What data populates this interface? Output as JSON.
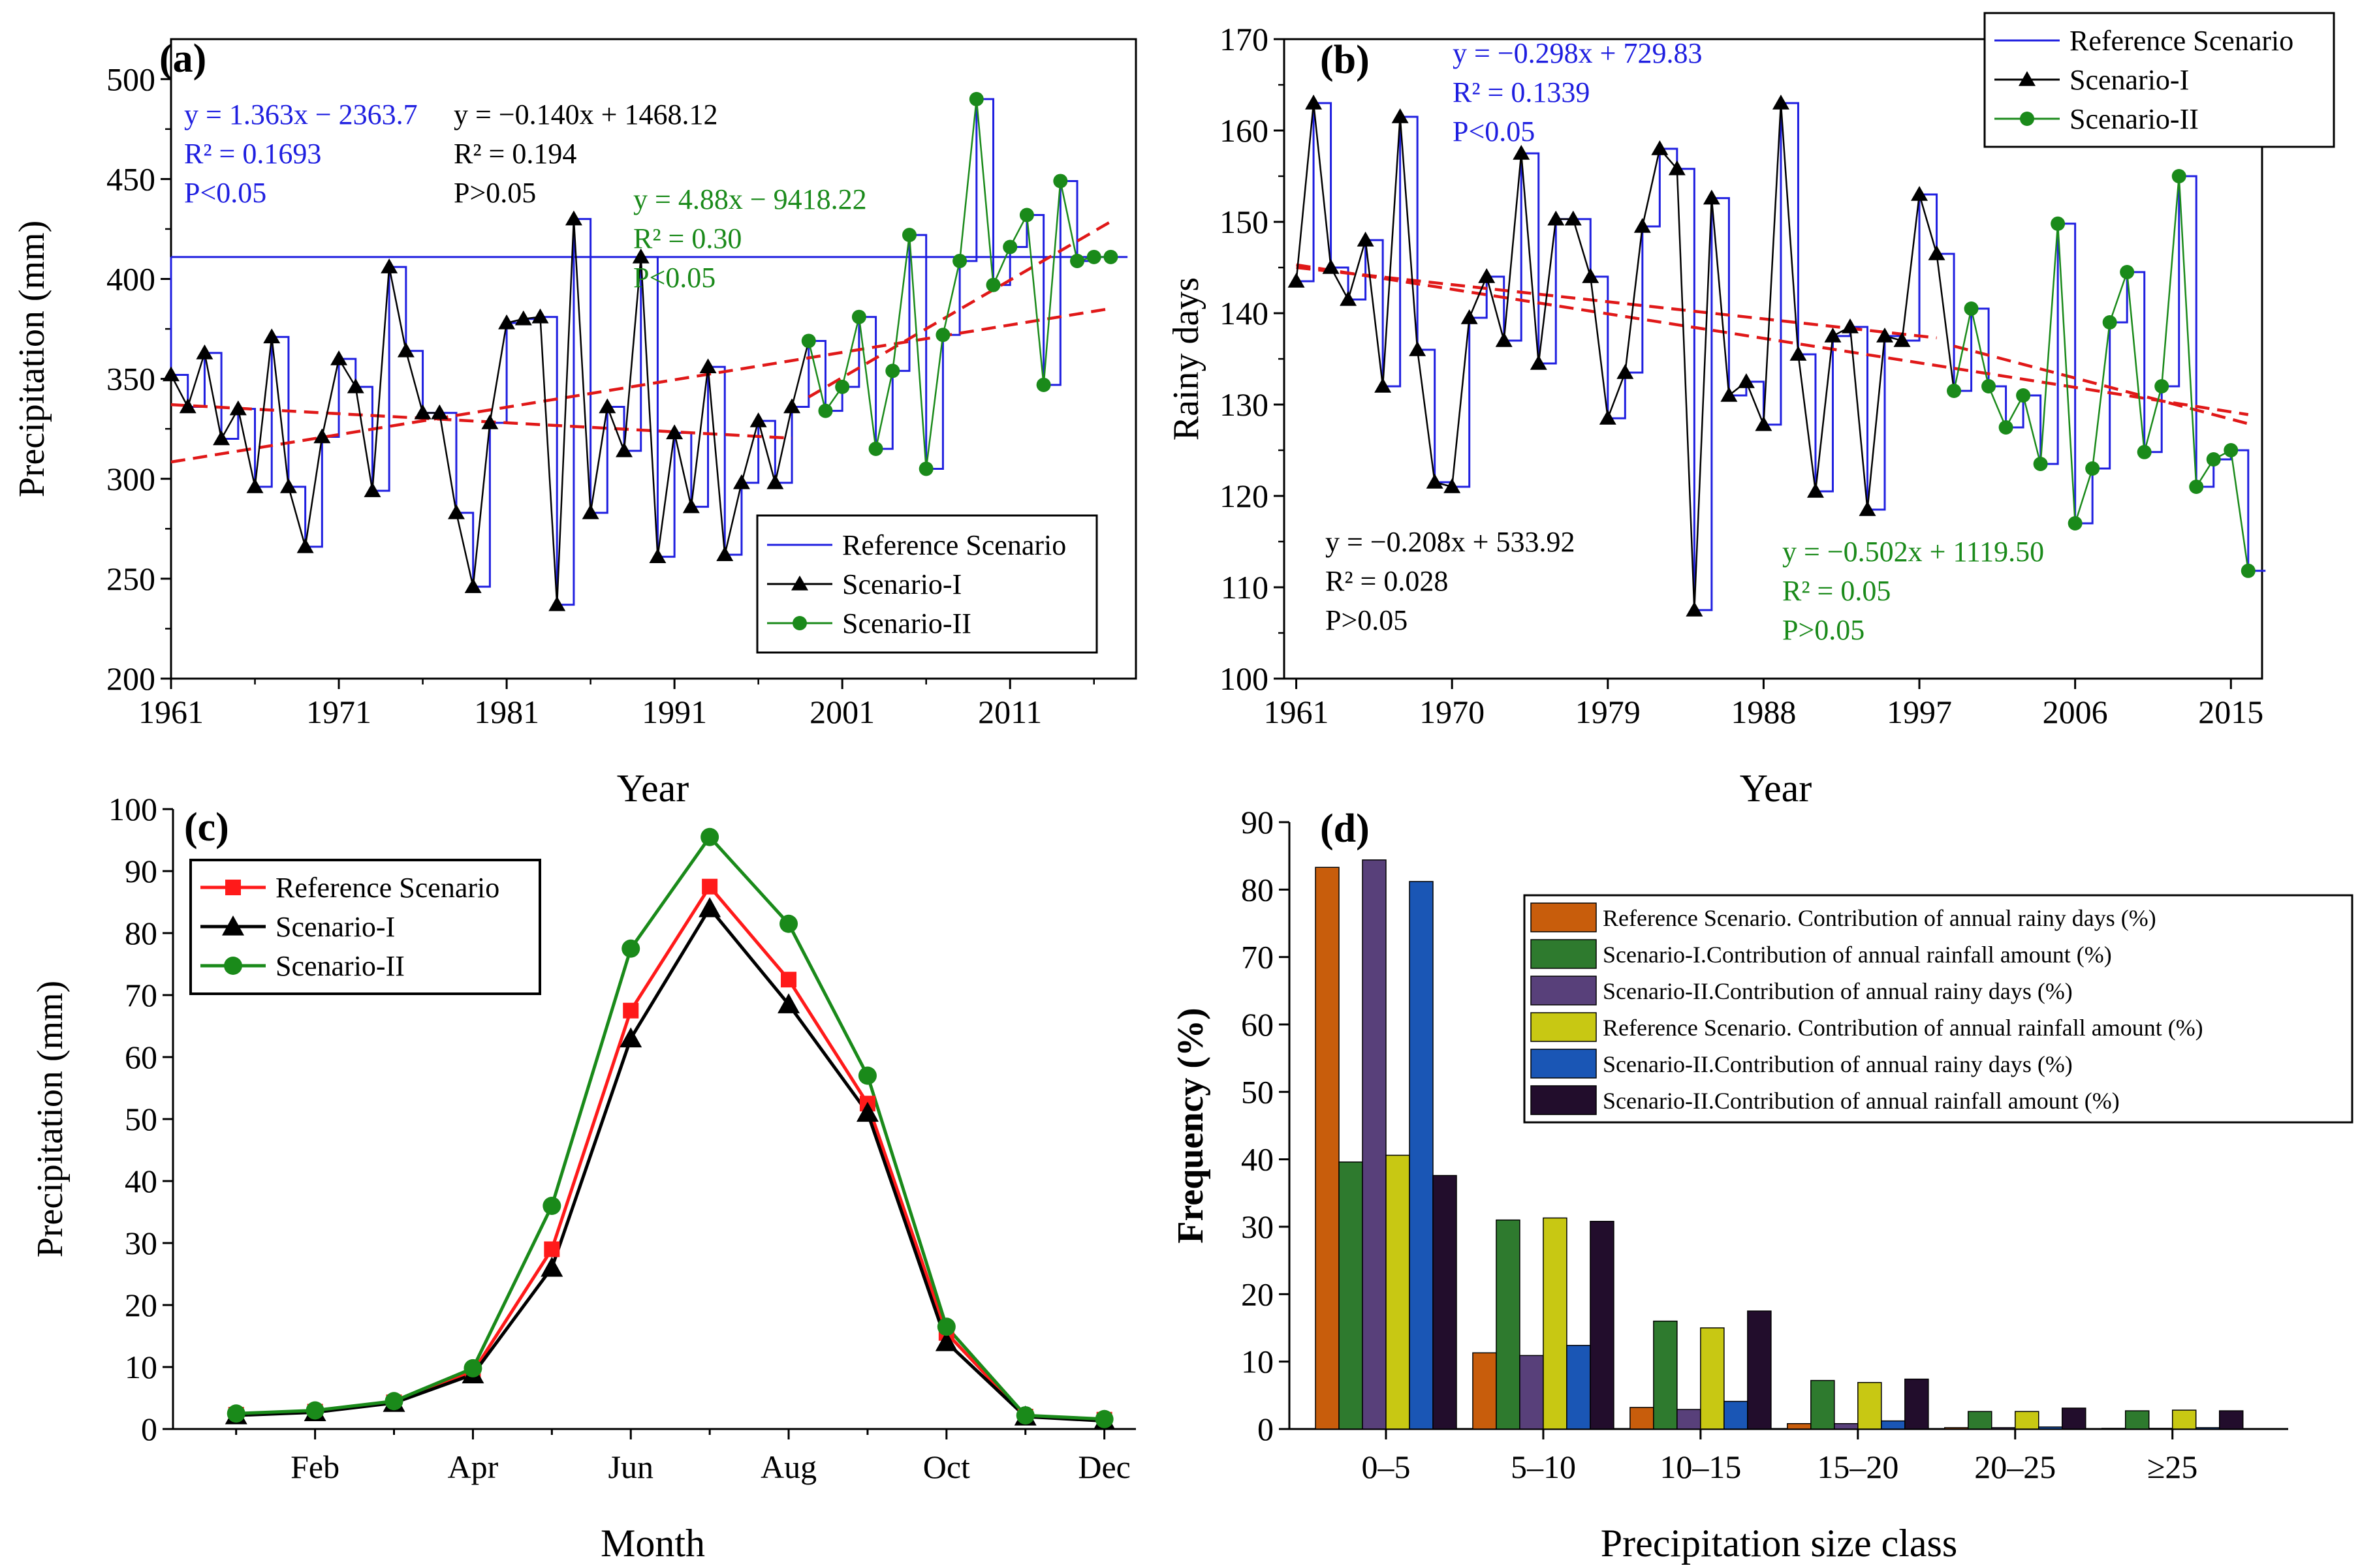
{
  "colors": {
    "reference": "#1f1fe0",
    "scenario1": "#000000",
    "scenario2": "#1a8a1a",
    "trend": "#e01818",
    "ref_red": "#ff1a1a",
    "bar_orange": "#c85d0c",
    "bar_green": "#2e7a2e",
    "bar_purple": "#58407a",
    "bar_yellow": "#c8c813",
    "bar_blue": "#1a56b5",
    "bar_dark": "#220d2c"
  },
  "chart_data": [
    {
      "id": "a",
      "panel_label": "(a)",
      "type": "line",
      "ylabel": "Precipitation (mm)",
      "xlabel": "Year",
      "xlim": [
        1961,
        2018.5
      ],
      "ylim": [
        200,
        520
      ],
      "xticks": [
        1961,
        1971,
        1981,
        1991,
        2001,
        2011
      ],
      "yticks": [
        200,
        250,
        300,
        350,
        400,
        450,
        500
      ],
      "reference_line_value": 411,
      "scenario1": {
        "x": [
          1961,
          1962,
          1963,
          1964,
          1965,
          1966,
          1967,
          1968,
          1969,
          1970,
          1971,
          1972,
          1973,
          1974,
          1975,
          1976,
          1977,
          1978,
          1979,
          1980,
          1981,
          1982,
          1983,
          1984,
          1985,
          1986,
          1987,
          1988,
          1989,
          1990,
          1991,
          1992,
          1993,
          1994,
          1995,
          1996,
          1997,
          1998
        ],
        "y": [
          352,
          336,
          363,
          320,
          335,
          296,
          371,
          296,
          266,
          321,
          360,
          346,
          294,
          406,
          364,
          333,
          333,
          283,
          246,
          328,
          378,
          380,
          381,
          237,
          430,
          283,
          336,
          314,
          411,
          261,
          323,
          286,
          356,
          262,
          298,
          329,
          298,
          336
        ]
      },
      "scenario2": {
        "x": [
          1999,
          2000,
          2001,
          2002,
          2003,
          2004,
          2005,
          2006,
          2007,
          2008,
          2009,
          2010,
          2011,
          2012,
          2013,
          2014,
          2015,
          2016,
          2017
        ],
        "y": [
          369,
          334,
          346,
          381,
          315,
          354,
          422,
          305,
          372,
          409,
          490,
          397,
          416,
          432,
          347,
          449,
          409,
          411,
          411
        ]
      },
      "trends": [
        {
          "name": "trend-1961-2017",
          "x": [
            1961,
            2017
          ],
          "y": [
            308.4,
            385.2
          ]
        },
        {
          "name": "trend-1961-1998",
          "x": [
            1961,
            1998
          ],
          "y": [
            337.1,
            320.3
          ]
        },
        {
          "name": "trend-1999-2017",
          "x": [
            1999,
            2017
          ],
          "y": [
            340.9,
            428.7
          ]
        }
      ],
      "annotations": [
        {
          "lines": [
            "y = 1.363x − 2363.7",
            "R² = 0.1693",
            "P<0.05"
          ],
          "color": "reference"
        },
        {
          "lines": [
            "y = −0.140x + 1468.12",
            "R² = 0.194",
            "P>0.05"
          ],
          "color": "scenario1"
        },
        {
          "lines": [
            "y = 4.88x − 9418.22",
            "R² = 0.30",
            "P<0.05"
          ],
          "color": "scenario2"
        }
      ],
      "legend": [
        "Reference Scenario",
        "Scenario-I",
        "Scenario-II"
      ]
    },
    {
      "id": "b",
      "panel_label": "(b)",
      "type": "line",
      "ylabel": "Rainy days",
      "xlabel": "Year",
      "xlim": [
        1960.3,
        2016.8
      ],
      "ylim": [
        100,
        170
      ],
      "xticks": [
        1961,
        1970,
        1979,
        1988,
        1997,
        2006,
        2015
      ],
      "yticks": [
        100,
        110,
        120,
        130,
        140,
        150,
        160,
        170
      ],
      "scenario1": {
        "x": [
          1961,
          1962,
          1963,
          1964,
          1965,
          1966,
          1967,
          1968,
          1969,
          1970,
          1971,
          1972,
          1973,
          1974,
          1975,
          1976,
          1977,
          1978,
          1979,
          1980,
          1981,
          1982,
          1983,
          1984,
          1985,
          1986,
          1987,
          1988,
          1989,
          1990,
          1991,
          1992,
          1993,
          1994,
          1995,
          1996,
          1997,
          1998
        ],
        "y": [
          143.5,
          163,
          145,
          141.5,
          148,
          132,
          161.5,
          136,
          121.5,
          121,
          139.5,
          144,
          137,
          157.5,
          134.5,
          150.3,
          150.3,
          144,
          128.5,
          133.5,
          149.5,
          158,
          155.8,
          107.5,
          152.6,
          131,
          132.5,
          127.8,
          163,
          135.5,
          120.5,
          137.5,
          138.5,
          118.5,
          137.5,
          137,
          153,
          146.5
        ]
      },
      "scenario2": {
        "x": [
          1999,
          2000,
          2001,
          2002,
          2003,
          2004,
          2005,
          2006,
          2007,
          2008,
          2009,
          2010,
          2011,
          2012,
          2013,
          2014,
          2015,
          2016
        ],
        "y": [
          131.5,
          140.5,
          132,
          127.5,
          131,
          123.5,
          149.8,
          117,
          123,
          139,
          144.5,
          124.8,
          132,
          155,
          121,
          124,
          125,
          111.8
        ]
      },
      "trends": [
        {
          "name": "trend-1961-2016",
          "x": [
            1961,
            2016
          ],
          "y": [
            145.3,
            128.9
          ]
        },
        {
          "name": "trend-1961-1998",
          "x": [
            1961,
            1998
          ],
          "y": [
            145.0,
            137.3
          ]
        },
        {
          "name": "trend-1999-2016",
          "x": [
            1999,
            2016
          ],
          "y": [
            136.4,
            127.9
          ]
        }
      ],
      "annotations": [
        {
          "lines": [
            "y = −0.298x + 729.83",
            "R² = 0.1339",
            "P<0.05"
          ],
          "color": "reference"
        },
        {
          "lines": [
            "y = −0.208x + 533.92",
            "R² = 0.028",
            "P>0.05"
          ],
          "color": "scenario1"
        },
        {
          "lines": [
            "y = −0.502x + 1119.50",
            "R² = 0.05",
            "P>0.05"
          ],
          "color": "scenario2"
        }
      ],
      "legend": [
        "Reference Scenario",
        "Scenario-I",
        "Scenario-II"
      ]
    },
    {
      "id": "c",
      "panel_label": "(c)",
      "type": "line",
      "ylabel": "Precipitation (mm)",
      "xlabel": "Month",
      "xlim": [
        0,
        12
      ],
      "ylim": [
        0,
        100
      ],
      "xticklabels": [
        "Feb",
        "Apr",
        "Jun",
        "Aug",
        "Oct",
        "Dec"
      ],
      "yticks": [
        0,
        10,
        20,
        30,
        40,
        50,
        60,
        70,
        80,
        90,
        100
      ],
      "series": [
        {
          "name": "Reference Scenario",
          "values": [
            2.3,
            2.8,
            4.3,
            9.2,
            29,
            67.5,
            87.5,
            72.5,
            52.5,
            15.5,
            2.0,
            1.5
          ]
        },
        {
          "name": "Scenario-I",
          "values": [
            2.2,
            2.7,
            4.2,
            8.8,
            26,
            63,
            84,
            68.5,
            51,
            14,
            2.0,
            1.3
          ]
        },
        {
          "name": "Scenario-II",
          "values": [
            2.5,
            3.0,
            4.5,
            9.8,
            36,
            77.5,
            95.5,
            81.5,
            57,
            16.5,
            2.2,
            1.6
          ]
        }
      ],
      "legend": [
        "Reference Scenario",
        "Scenario-I",
        "Scenario-II"
      ]
    },
    {
      "id": "d",
      "panel_label": "(d)",
      "type": "bar",
      "ylabel": "Frequency (%)",
      "xlabel": "Precipitation size class",
      "ylim": [
        0,
        90
      ],
      "yticks": [
        0,
        10,
        20,
        30,
        40,
        50,
        60,
        70,
        80,
        90
      ],
      "categories": [
        "0–5",
        "5–10",
        "10–15",
        "15–20",
        "20–25",
        "≥25"
      ],
      "series": [
        {
          "name": "Reference Scenario. Contribution of annual rainy days (%)",
          "values": [
            83.3,
            11.3,
            3.2,
            0.8,
            0.2,
            0.1
          ]
        },
        {
          "name": "Scenario-I.Contribution of annual rainfall amount (%)",
          "values": [
            39.6,
            31.0,
            16.0,
            7.2,
            2.6,
            2.7
          ]
        },
        {
          "name": "Scenario-II.Contribution of annual rainy days (%)",
          "values": [
            84.4,
            10.9,
            2.9,
            0.8,
            0.2,
            0.1
          ]
        },
        {
          "name": "Reference Scenario. Contribution of annual rainfall amount (%)",
          "values": [
            40.6,
            31.3,
            15.0,
            6.9,
            2.6,
            2.8
          ]
        },
        {
          "name": "Scenario-II.Contribution of annual rainy days (%)",
          "values": [
            81.2,
            12.4,
            4.1,
            1.2,
            0.3,
            0.2
          ]
        },
        {
          "name": "Scenario-II.Contribution of annual rainfall amount (%)",
          "values": [
            37.6,
            30.8,
            17.5,
            7.4,
            3.1,
            2.7
          ]
        }
      ]
    }
  ]
}
